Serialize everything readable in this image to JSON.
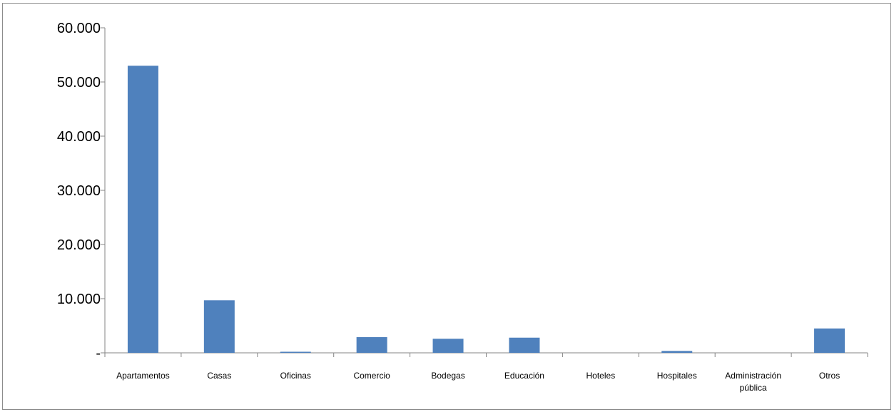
{
  "chart_data": {
    "type": "bar",
    "title": "",
    "xlabel": "",
    "ylabel": "",
    "categories": [
      [
        "Apartamentos"
      ],
      [
        "Casas"
      ],
      [
        "Oficinas"
      ],
      [
        "Comercio"
      ],
      [
        "Bodegas"
      ],
      [
        "Educación"
      ],
      [
        "Hoteles"
      ],
      [
        "Hospitales"
      ],
      [
        "Administración",
        "pública"
      ],
      [
        "Otros"
      ]
    ],
    "values": [
      53000,
      9700,
      200,
      2900,
      2600,
      2800,
      0,
      350,
      0,
      4500
    ],
    "ylim": [
      0,
      60000
    ],
    "yticks": [
      0,
      10000,
      20000,
      30000,
      40000,
      50000,
      60000
    ],
    "ytick_labels": [
      "-",
      "10.000",
      "20.000",
      "30.000",
      "40.000",
      "50.000",
      "60.000"
    ],
    "grid": false,
    "legend": "none",
    "bar_color": "#4f81bd"
  }
}
